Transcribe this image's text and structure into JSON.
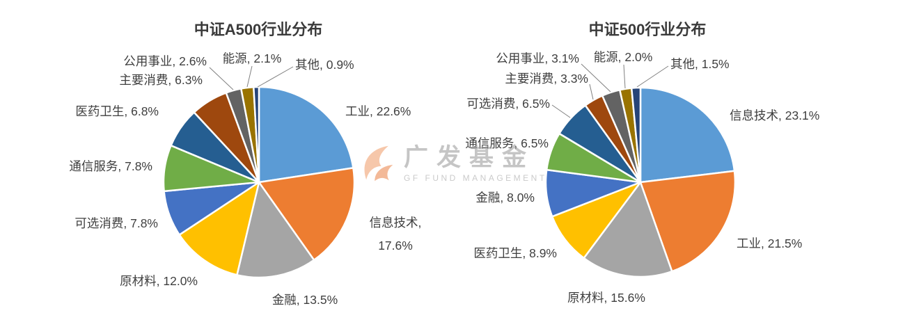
{
  "watermark": {
    "brand_cn": "广发基金",
    "brand_en": "GF FUND MANAGEMENT",
    "logo_color": "#ED7D31",
    "text_color": "#969696"
  },
  "chart_data": [
    {
      "type": "pie",
      "title": "中证A500行业分布",
      "label_format": "{category}, {value}%",
      "direction": "clockwise",
      "start_angle_deg": 0,
      "categories": [
        "工业",
        "信息技术",
        "金融",
        "原材料",
        "可选消费",
        "通信服务",
        "医药卫生",
        "主要消费",
        "公用事业",
        "能源",
        "其他"
      ],
      "values": [
        22.6,
        17.6,
        13.5,
        12.0,
        7.8,
        7.8,
        6.8,
        6.3,
        2.6,
        2.1,
        0.9
      ],
      "colors": [
        "#5B9BD5",
        "#ED7D31",
        "#A5A5A5",
        "#FFC000",
        "#4472C4",
        "#70AD47",
        "#255E91",
        "#9E480E",
        "#636363",
        "#997300",
        "#264478"
      ]
    },
    {
      "type": "pie",
      "title": "中证500行业分布",
      "label_format": "{category}, {value}%",
      "direction": "clockwise",
      "start_angle_deg": 0,
      "categories": [
        "信息技术",
        "工业",
        "原材料",
        "医药卫生",
        "金融",
        "通信服务",
        "可选消费",
        "主要消费",
        "公用事业",
        "能源",
        "其他"
      ],
      "values": [
        23.1,
        21.5,
        15.6,
        8.9,
        8.0,
        6.5,
        6.5,
        3.3,
        3.1,
        2.0,
        1.5
      ],
      "colors": [
        "#5B9BD5",
        "#ED7D31",
        "#A5A5A5",
        "#FFC000",
        "#4472C4",
        "#70AD47",
        "#255E91",
        "#9E480E",
        "#636363",
        "#997300",
        "#264478"
      ]
    }
  ]
}
